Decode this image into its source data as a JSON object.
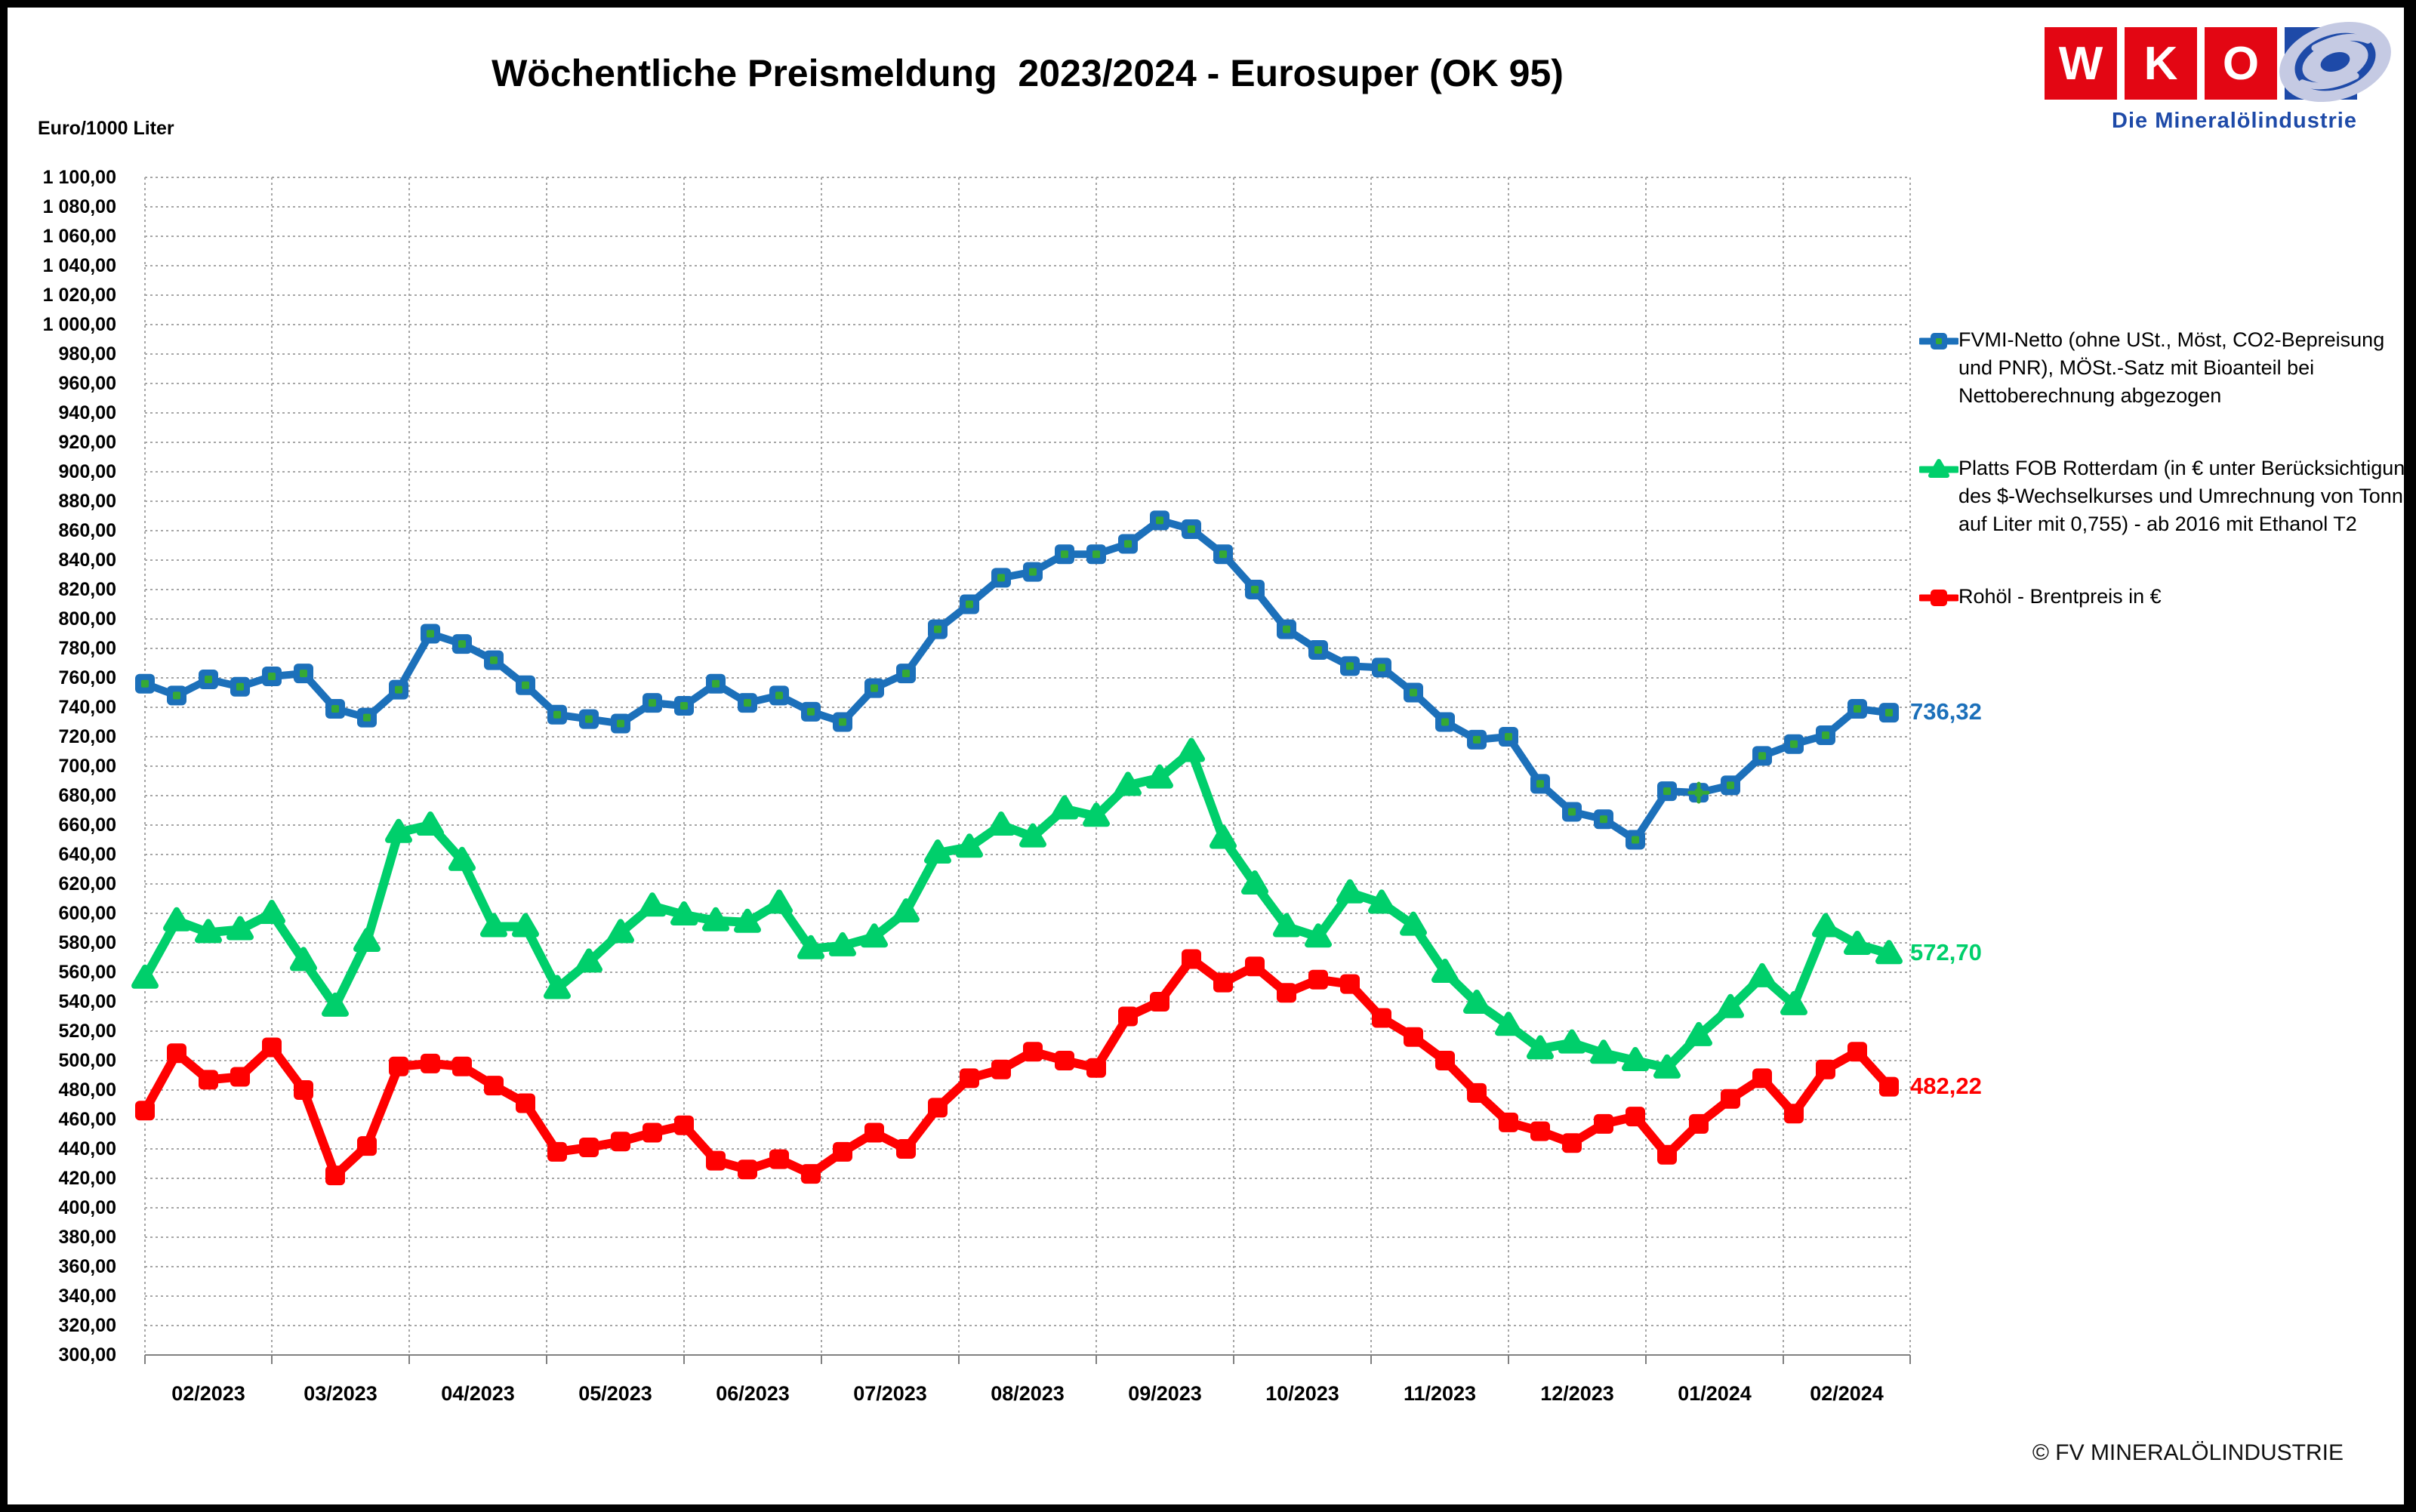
{
  "title": "Wöchentliche Preismeldung  2023/2024 - Eurosuper (OK 95)",
  "y_axis_unit": "Euro/1000 Liter",
  "footer": "© FV MINERALÖLINDUSTRIE",
  "logo": {
    "letters": [
      "W",
      "K",
      "O"
    ],
    "subtitle": "Die Mineralölindustrie",
    "red": "#E30613",
    "blue": "#1E4AA8"
  },
  "legend": [
    {
      "series": 0,
      "lines": [
        "FVMI-Netto (ohne USt., Möst, CO2-Bepreisung",
        "und PNR), MÖSt.-Satz mit Bioanteil bei",
        "Nettoberechnung abgezogen"
      ]
    },
    {
      "series": 1,
      "lines": [
        "Platts FOB Rotterdam (in € unter Berücksichtigung",
        "des $-Wechselkurses und Umrechnung von Tonne",
        "auf Liter mit 0,755) - ab 2016 mit Ethanol T2"
      ]
    },
    {
      "series": 2,
      "lines": [
        "Rohöl - Brentpreis in €"
      ]
    }
  ],
  "chart_data": {
    "type": "line",
    "title": "Wöchentliche Preismeldung 2023/2024 - Eurosuper (OK 95)",
    "ylabel": "Euro/1000 Liter",
    "ylim": [
      300,
      1100
    ],
    "y_step": 20,
    "grid": true,
    "legend_position": "right",
    "x_unit": "week",
    "categories": [
      "02/2023",
      "03/2023",
      "04/2023",
      "05/2023",
      "06/2023",
      "07/2023",
      "08/2023",
      "09/2023",
      "10/2023",
      "11/2023",
      "12/2023",
      "01/2024",
      "02/2024"
    ],
    "series": [
      {
        "name": "FVMI-Netto",
        "color": "#1C70BA",
        "marker": "square-dot",
        "marker_center": "#35A935",
        "end_label": "736,32",
        "x_marker_index": 49,
        "values": [
          756,
          748,
          759,
          754,
          761,
          763,
          739,
          733,
          752,
          790,
          783,
          772,
          755,
          735,
          732,
          729,
          743,
          741,
          756,
          743,
          748,
          737,
          730,
          753,
          763,
          793,
          810,
          828,
          832,
          844,
          844,
          851,
          867,
          861,
          844,
          820,
          793,
          779,
          768,
          767,
          750,
          730,
          718,
          720,
          688,
          669,
          664,
          650,
          683,
          682,
          687,
          707,
          715,
          721,
          739,
          736.32
        ]
      },
      {
        "name": "Platts FOB Rotterdam",
        "color": "#00CF6B",
        "marker": "triangle",
        "end_label": "572,70",
        "values": [
          556,
          595,
          587,
          589,
          600,
          568,
          537,
          581,
          655,
          660,
          636,
          591,
          591,
          549,
          567,
          587,
          605,
          599,
          595,
          594,
          607,
          576,
          578,
          584,
          601,
          641,
          645,
          660,
          652,
          671,
          666,
          687,
          692,
          710,
          651,
          620,
          591,
          584,
          614,
          607,
          592,
          560,
          539,
          524,
          508,
          512,
          505,
          500,
          495,
          517,
          536,
          557,
          538,
          591,
          579,
          572.7
        ]
      },
      {
        "name": "Rohöl - Brentpreis",
        "color": "#FF0000",
        "marker": "square",
        "end_label": "482,22",
        "values": [
          466,
          505,
          487,
          489,
          509,
          480,
          422,
          442,
          496,
          498,
          496,
          483,
          471,
          438,
          441,
          445,
          451,
          456,
          432,
          426,
          433,
          423,
          438,
          451,
          440,
          468,
          488,
          494,
          506,
          500,
          495,
          530,
          540,
          569,
          553,
          564,
          546,
          555,
          552,
          529,
          516,
          500,
          478,
          458,
          452,
          444,
          457,
          462,
          436,
          457,
          474,
          488,
          464,
          494,
          506,
          482.22
        ]
      }
    ]
  }
}
